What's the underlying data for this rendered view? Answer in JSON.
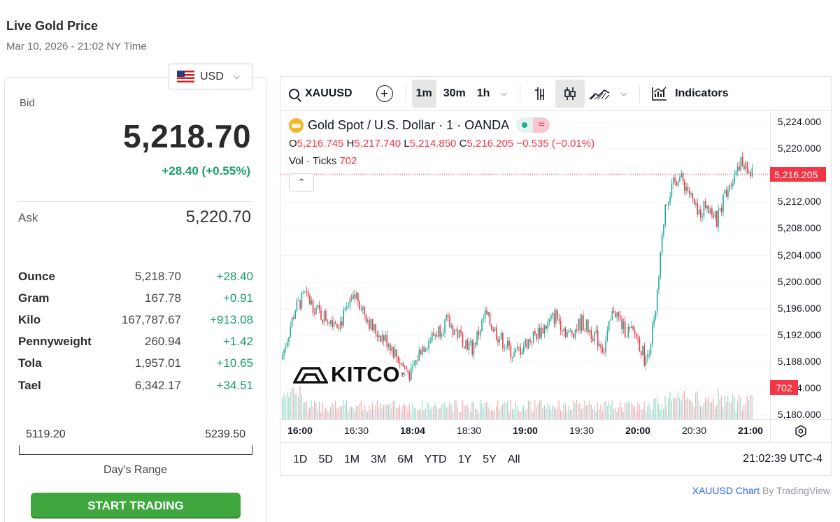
{
  "header": {
    "title": "Live Gold Price",
    "timestamp": "Mar 10, 2026 - 21:02 NY Time"
  },
  "currency": {
    "selected": "USD",
    "flag_icon": "us-flag-icon"
  },
  "quote": {
    "bid_label": "Bid",
    "bid": "5,218.70",
    "change": "+28.40 (+0.55%)",
    "ask_label": "Ask",
    "ask": "5,220.70"
  },
  "units": [
    {
      "name": "Ounce",
      "price": "5,218.70",
      "change": "+28.40"
    },
    {
      "name": "Gram",
      "price": "167.78",
      "change": "+0.91"
    },
    {
      "name": "Kilo",
      "price": "167,787.67",
      "change": "+913.08"
    },
    {
      "name": "Pennyweight",
      "price": "260.94",
      "change": "+1.42"
    },
    {
      "name": "Tola",
      "price": "1,957.01",
      "change": "+10.65"
    },
    {
      "name": "Tael",
      "price": "6,342.17",
      "change": "+34.51"
    }
  ],
  "days_range": {
    "low": "5119.20",
    "high": "5239.50",
    "label": "Day's Range"
  },
  "cta": {
    "label": "START TRADING"
  },
  "chart": {
    "symbol": "XAUUSD",
    "intervals": [
      "1m",
      "30m",
      "1h"
    ],
    "active_interval": "1m",
    "indicators_label": "Indicators",
    "legend_title": "Gold Spot / U.S. Dollar · 1 · OANDA",
    "ohlc": {
      "o_label": "O",
      "o": "5,216.745",
      "h_label": "H",
      "h": "5,217.740",
      "l_label": "L",
      "l": "5,214.850",
      "c_label": "C",
      "c": "5,216.205",
      "chg": "−0.535 (−0.01%)"
    },
    "volume_label": "Vol · Ticks",
    "volume_value": "702",
    "watermark": "KITCO",
    "last_price_tag": "5,216.205",
    "last_volume_tag": "702",
    "price_ticks": [
      "5,224.000",
      "5,220.000",
      "5,216.000",
      "5,212.000",
      "5,208.000",
      "5,204.000",
      "5,200.000",
      "5,196.000",
      "5,192.000",
      "5,188.000",
      "5,184.000",
      "5,180.000"
    ],
    "time_ticks": [
      {
        "label": "16:00",
        "strong": true
      },
      {
        "label": "16:30",
        "strong": false
      },
      {
        "label": "18:04",
        "strong": true
      },
      {
        "label": "18:30",
        "strong": false
      },
      {
        "label": "19:00",
        "strong": true
      },
      {
        "label": "19:30",
        "strong": false
      },
      {
        "label": "20:00",
        "strong": true
      },
      {
        "label": "20:30",
        "strong": false
      },
      {
        "label": "21:00",
        "strong": true
      }
    ],
    "ranges": [
      "1D",
      "5D",
      "1M",
      "3M",
      "6M",
      "YTD",
      "1Y",
      "5Y",
      "All"
    ],
    "clock": "21:02:39 UTC-4",
    "colors": {
      "up": "#22ab94",
      "down": "#f23645",
      "last_price_line": "#f23645"
    }
  },
  "chart_data": {
    "type": "candlestick",
    "title": "Gold Spot / U.S. Dollar · 1 · OANDA",
    "ylim": [
      5180,
      5224
    ],
    "last_close": 5216.205,
    "series": [
      {
        "name": "XAUUSD",
        "anchors_close": [
          [
            0,
            5189
          ],
          [
            8,
            5196
          ],
          [
            14,
            5198
          ],
          [
            24,
            5195
          ],
          [
            36,
            5194
          ],
          [
            46,
            5198
          ],
          [
            56,
            5193
          ],
          [
            66,
            5191
          ],
          [
            73,
            5188
          ],
          [
            80,
            5186
          ],
          [
            86,
            5190
          ],
          [
            94,
            5192
          ],
          [
            102,
            5194
          ],
          [
            110,
            5192
          ],
          [
            118,
            5190
          ],
          [
            126,
            5195
          ],
          [
            134,
            5192
          ],
          [
            144,
            5189
          ],
          [
            152,
            5191
          ],
          [
            162,
            5193
          ],
          [
            170,
            5195
          ],
          [
            178,
            5192
          ],
          [
            186,
            5194
          ],
          [
            194,
            5192
          ],
          [
            200,
            5190
          ],
          [
            206,
            5196
          ],
          [
            212,
            5193
          ],
          [
            220,
            5192
          ],
          [
            226,
            5188
          ],
          [
            232,
            5195
          ],
          [
            238,
            5212
          ],
          [
            246,
            5216
          ],
          [
            252,
            5214
          ],
          [
            258,
            5210
          ],
          [
            264,
            5212
          ],
          [
            270,
            5209
          ],
          [
            276,
            5214
          ],
          [
            284,
            5218
          ],
          [
            292,
            5216
          ]
        ]
      }
    ],
    "x_ticks": [
      "16:00",
      "16:30",
      "18:04",
      "18:30",
      "19:00",
      "19:30",
      "20:00",
      "20:30",
      "21:00"
    ],
    "ylabel": "",
    "xlabel": ""
  },
  "attribution": {
    "link": "XAUUSD Chart",
    "by": "By TradingView"
  }
}
